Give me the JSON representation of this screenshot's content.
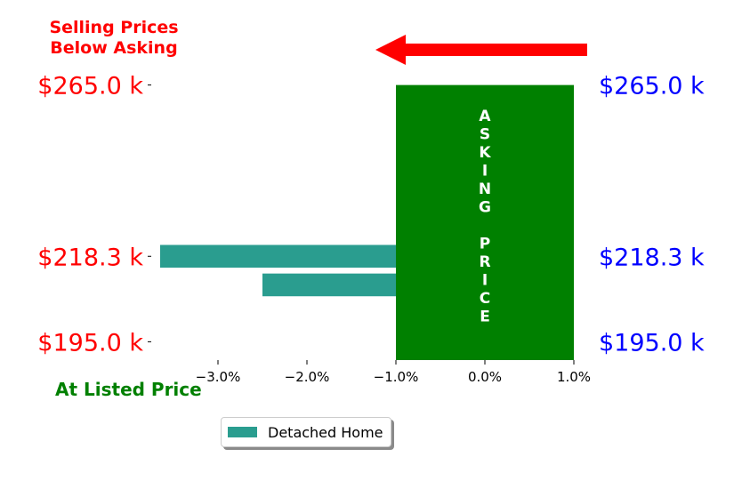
{
  "annotations": {
    "below_asking": [
      "Selling Prices",
      "Below Asking"
    ],
    "asking_price_letters": [
      "A",
      "S",
      "K",
      "I",
      "N",
      "G",
      "",
      "P",
      "R",
      "I",
      "C",
      "E"
    ],
    "at_listed_price": "At Listed Price"
  },
  "legend": {
    "label": "Detached Home"
  },
  "colors": {
    "bar": "#2a9d8f",
    "asking_block": "#008000",
    "left_labels": "#ff0000",
    "right_labels": "#0000ff",
    "arrow": "#ff0000",
    "listed_label": "#008000"
  },
  "chart_data": {
    "type": "bar",
    "orientation": "horizontal",
    "x_ticks": [
      -3.0,
      -2.0,
      -1.0,
      0.0,
      1.0
    ],
    "x_tick_labels": [
      "−3.0%",
      "−2.0%",
      "−1.0%",
      "0.0%",
      "1.0%"
    ],
    "xlim": [
      -3.75,
      1.0
    ],
    "ylim": [
      190,
      270
    ],
    "y_ticks": [
      195.0,
      218.3,
      265.0
    ],
    "y_tick_labels_left": [
      "$195.0 k",
      "$218.3 k",
      "$265.0 k"
    ],
    "y_tick_labels_right": [
      "$195.0 k",
      "$218.3 k",
      "$265.0 k"
    ],
    "series": [
      {
        "name": "Detached Home",
        "bars": [
          {
            "price": 218.3,
            "percent": -3.65
          },
          {
            "price": 210.5,
            "percent": -2.5
          }
        ],
        "bar_height": 6.2
      }
    ],
    "asking_band": {
      "x_from": -1.0,
      "x_to": 1.0,
      "price_from": 190,
      "price_to": 265
    },
    "legend_position": "lower center"
  }
}
